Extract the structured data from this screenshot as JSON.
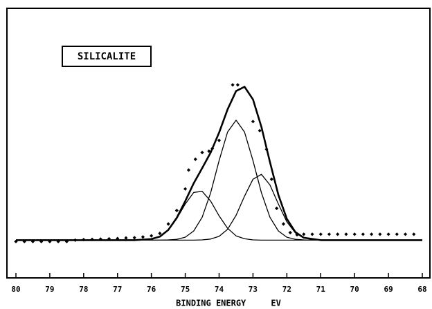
{
  "chart_data": {
    "type": "line",
    "annotation": "SILICALITE",
    "xlabel": "BINDING ENERGY     EV",
    "xlim": [
      80,
      68
    ],
    "xticks": [
      80,
      79,
      78,
      77,
      76,
      75,
      74,
      73,
      72,
      71,
      70,
      69,
      68
    ],
    "ylim": [
      0,
      100
    ],
    "x": [
      80,
      79,
      78,
      77,
      76.5,
      76,
      75.75,
      75.5,
      75.25,
      75,
      74.75,
      74.5,
      74.25,
      74,
      73.75,
      73.5,
      73.25,
      73,
      72.75,
      72.5,
      72.25,
      72,
      71.75,
      71.5,
      71,
      70,
      69,
      68
    ],
    "series": [
      {
        "color": "#000000",
        "line_width": 2.6,
        "values": [
          14,
          14,
          14,
          14,
          14,
          14.4,
          15.3,
          17.8,
          22.3,
          28.5,
          35.1,
          40.7,
          46.5,
          53.9,
          62.5,
          69.3,
          70.9,
          66.2,
          56,
          43,
          30.8,
          21.9,
          17,
          14.9,
          14,
          14,
          14,
          14
        ]
      },
      {
        "color": "#000000",
        "line_width": 1.3,
        "values": [
          14,
          14,
          14,
          14,
          14,
          14,
          14,
          14.1,
          14.3,
          15.1,
          17.4,
          22.5,
          31.6,
          43.5,
          54.1,
          58.5,
          54.1,
          43.5,
          31.6,
          22.5,
          17.4,
          15.1,
          14.3,
          14.1,
          14,
          14,
          14,
          14
        ]
      },
      {
        "color": "#000000",
        "line_width": 1.3,
        "values": [
          14,
          14,
          14,
          14,
          14,
          14.4,
          15.3,
          17.7,
          22,
          27.4,
          31.7,
          32.1,
          28.5,
          23,
          18.4,
          15.6,
          14.5,
          14.1,
          14,
          14,
          14,
          14,
          14,
          14,
          14,
          14,
          14,
          14
        ]
      },
      {
        "color": "#000000",
        "line_width": 1.3,
        "values": [
          14,
          14,
          14,
          14,
          14,
          14,
          14,
          14,
          14,
          14,
          14,
          14.1,
          14.4,
          15.4,
          18,
          23.2,
          30.3,
          36.6,
          38.4,
          34.5,
          27.4,
          20.8,
          16.7,
          14.8,
          14,
          14,
          14,
          14
        ]
      }
    ],
    "observed": {
      "color": "#000000",
      "marker": "diamond",
      "x": [
        80,
        79.75,
        79.5,
        79.25,
        79,
        78.75,
        78.5,
        78.25,
        78,
        77.75,
        77.5,
        77.25,
        77,
        76.75,
        76.5,
        76.25,
        76,
        75.75,
        75.5,
        75.25,
        75,
        74.9,
        74.7,
        74.5,
        74.3,
        74.2,
        74,
        73.6,
        73.45,
        73,
        72.8,
        72.6,
        72.45,
        72.3,
        72.1,
        71.9,
        71.7,
        71.5,
        71.25,
        71,
        70.75,
        70.5,
        70.25,
        70,
        69.75,
        69.5,
        69.25,
        69,
        68.75,
        68.5,
        68.25
      ],
      "values": [
        13.5,
        13.5,
        13.5,
        13.5,
        13.5,
        13.5,
        13.5,
        14,
        14.2,
        14.3,
        14.4,
        14.5,
        14.6,
        14.8,
        14.9,
        15.2,
        15.6,
        16.5,
        20,
        25,
        33,
        40,
        44,
        46.5,
        47,
        48,
        51,
        71.6,
        71.6,
        58,
        54.6,
        47.7,
        36.6,
        25.8,
        20,
        16.8,
        16,
        16.2,
        16.2,
        16.2,
        16.2,
        16.2,
        16.2,
        16.2,
        16.2,
        16.2,
        16.2,
        16.2,
        16.2,
        16.2,
        16.2
      ]
    }
  }
}
